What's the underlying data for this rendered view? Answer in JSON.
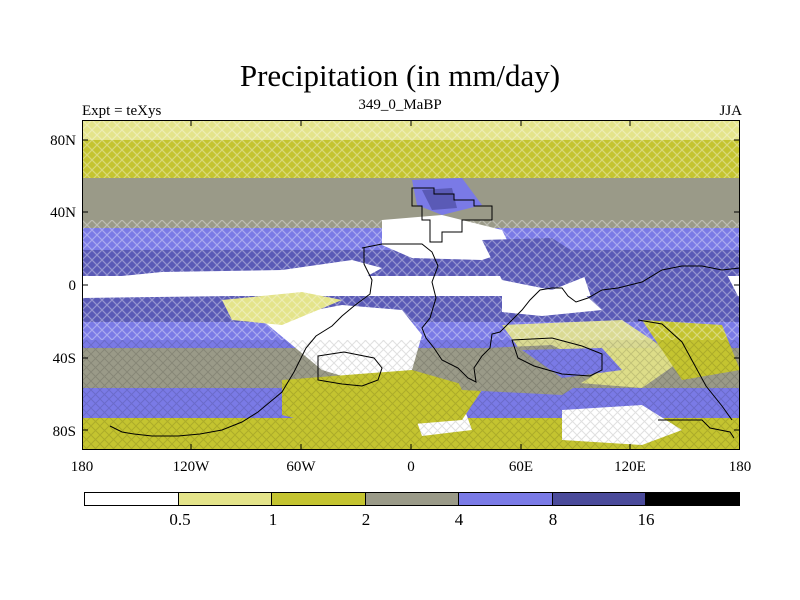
{
  "figure": {
    "title": "Precipitation (in mm/day)",
    "left_string": "Expt = teXys",
    "center_string": "349_0_MaBP",
    "right_string": "JJA"
  },
  "axes": {
    "lat_labels": [
      "80N",
      "40N",
      "0",
      "40S",
      "80S"
    ],
    "lon_labels": [
      "180",
      "120W",
      "60W",
      "0",
      "60E",
      "120E",
      "180"
    ]
  },
  "colorbar": {
    "labels": [
      "0.5",
      "1",
      "2",
      "4",
      "8",
      "16"
    ],
    "colors": [
      "#ffffff",
      "#e4e48a",
      "#c4c430",
      "#9a9a88",
      "#7a7ae6",
      "#4a4a9a",
      "#000000"
    ]
  }
}
